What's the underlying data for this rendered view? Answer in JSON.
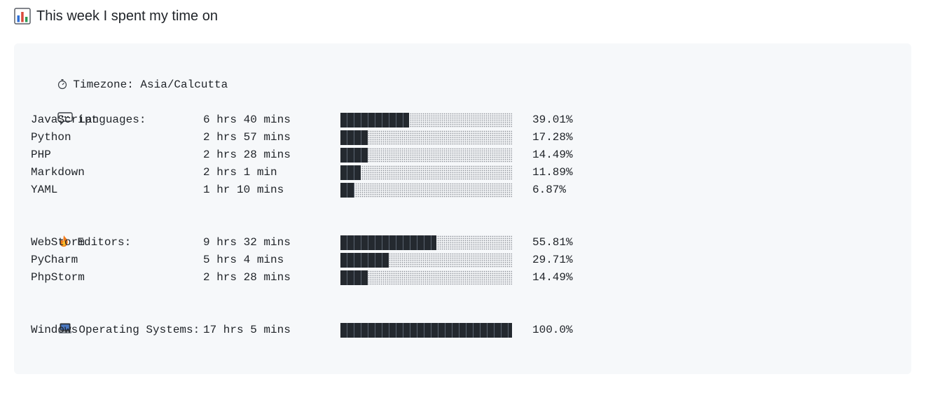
{
  "heading": {
    "emoji": "chart-icon",
    "text": "This week I spent my time on"
  },
  "timezone": {
    "text": "Timezone: Asia/Calcutta"
  },
  "sections": {
    "languages": {
      "title": "Languages:",
      "rows": [
        {
          "name": "JavaScript",
          "time": "6 hrs 40 mins",
          "percent": "39.01%",
          "value": 39.01
        },
        {
          "name": "Python",
          "time": "2 hrs 57 mins",
          "percent": "17.28%",
          "value": 17.28
        },
        {
          "name": "PHP",
          "time": "2 hrs 28 mins",
          "percent": "14.49%",
          "value": 14.49
        },
        {
          "name": "Markdown",
          "time": "2 hrs 1 min",
          "percent": "11.89%",
          "value": 11.89
        },
        {
          "name": "YAML",
          "time": "1 hr 10 mins",
          "percent": "6.87%",
          "value": 6.87
        }
      ]
    },
    "editors": {
      "title": "Editors:",
      "rows": [
        {
          "name": "WebStorm",
          "time": "9 hrs 32 mins",
          "percent": "55.81%",
          "value": 55.81
        },
        {
          "name": "PyCharm",
          "time": "5 hrs 4 mins",
          "percent": "29.71%",
          "value": 29.71
        },
        {
          "name": "PhpStorm",
          "time": "2 hrs 28 mins",
          "percent": "14.49%",
          "value": 14.49
        }
      ]
    },
    "os": {
      "title": "Operating Systems:",
      "rows": [
        {
          "name": "Windows",
          "time": "17 hrs 5 mins",
          "percent": "100.0%",
          "value": 100.0
        }
      ]
    }
  },
  "colors": {
    "bar_fill": "#24292f",
    "code_bg": "#f6f8fa",
    "text": "#1f2328"
  }
}
